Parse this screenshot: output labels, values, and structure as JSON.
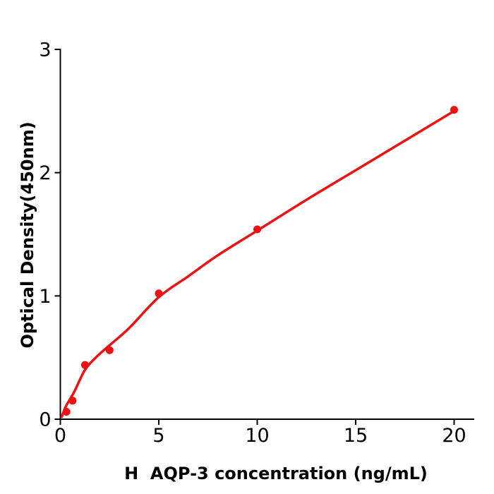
{
  "page": {
    "background": "#ffffff"
  },
  "chart_data": {
    "type": "scatter",
    "title": "",
    "xlabel": "H  AQP-3 concentration (ng/mL)",
    "ylabel": "Optical Density(450nm)",
    "xlim": [
      0,
      21
    ],
    "ylim": [
      0,
      3
    ],
    "xticks": [
      0,
      5,
      10,
      15,
      20
    ],
    "yticks": [
      0,
      1,
      2,
      3
    ],
    "grid": false,
    "legend": false,
    "axis_color": "#000000",
    "accent_color": "#ee1111",
    "series": [
      {
        "name": "standard-data-points",
        "type": "scatter",
        "color": "#ee1111",
        "marker": "circle",
        "x": [
          0.313,
          0.625,
          1.25,
          2.5,
          5,
          10,
          20
        ],
        "y": [
          0.06,
          0.15,
          0.44,
          0.56,
          1.02,
          1.54,
          2.51
        ]
      },
      {
        "name": "fit-curve",
        "type": "line",
        "color": "#ee1111",
        "points": [
          [
            0.07,
            0.02
          ],
          [
            0.3,
            0.11
          ],
          [
            0.7,
            0.22
          ],
          [
            1.25,
            0.4
          ],
          [
            1.8,
            0.5
          ],
          [
            2.5,
            0.6
          ],
          [
            3.5,
            0.74
          ],
          [
            5,
            0.99
          ],
          [
            6.5,
            1.16
          ],
          [
            8,
            1.33
          ],
          [
            10,
            1.53
          ],
          [
            12.5,
            1.78
          ],
          [
            15,
            2.02
          ],
          [
            17.5,
            2.26
          ],
          [
            20,
            2.5
          ]
        ]
      }
    ]
  }
}
